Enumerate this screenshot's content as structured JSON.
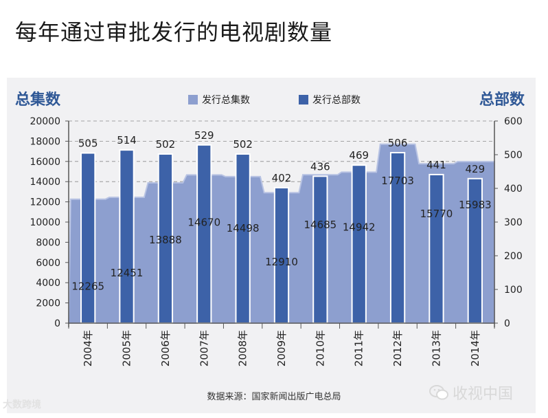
{
  "title": "每年通过审批发行的电视剧数量",
  "source": "数据来源：国家新闻出版广电总局",
  "watermark_right": "收视中国",
  "watermark_left": "大数跨境",
  "colors": {
    "area": "#8d9fcf",
    "area_edge": "#b8c3e3",
    "bar": "#3d62a8",
    "axis_label": "#2f5896",
    "panel": "#f1f1f3"
  },
  "chart_data": {
    "type": "bar+area",
    "categories": [
      "2004年",
      "2005年",
      "2006年",
      "2007年",
      "2008年",
      "2009年",
      "2010年",
      "2011年",
      "2012年",
      "2013年",
      "2014年"
    ],
    "series": [
      {
        "name": "发行总集数",
        "type": "area",
        "axis": "left",
        "values": [
          12265,
          12451,
          13888,
          14670,
          14498,
          12910,
          14685,
          14942,
          17703,
          15770,
          15983
        ]
      },
      {
        "name": "发行总部数",
        "type": "bar",
        "axis": "right",
        "values": [
          505,
          514,
          502,
          529,
          502,
          402,
          436,
          469,
          506,
          441,
          429
        ]
      }
    ],
    "left_axis": {
      "label": "总集数",
      "min": 0,
      "max": 20000,
      "ticks": [
        0,
        2000,
        4000,
        6000,
        8000,
        10000,
        12000,
        14000,
        16000,
        18000,
        20000
      ]
    },
    "right_axis": {
      "label": "总部数",
      "min": 0,
      "max": 600,
      "ticks": [
        0,
        100,
        200,
        300,
        400,
        500,
        600
      ]
    },
    "legend": [
      "发行总集数",
      "发行总部数"
    ],
    "legend_position": "top-center",
    "gridlines": "dashed"
  }
}
